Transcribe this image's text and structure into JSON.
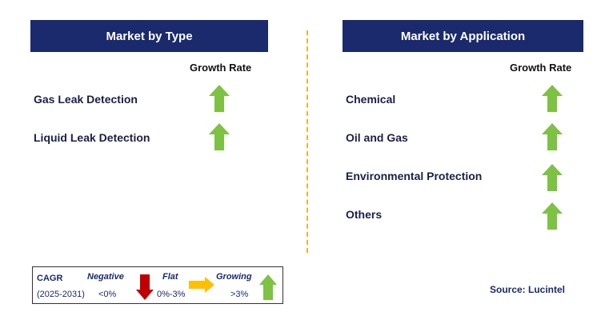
{
  "left_panel": {
    "title": "Market by Type",
    "growth_header": "Growth Rate",
    "items": [
      {
        "label": "Gas Leak Detection",
        "trend": "growing"
      },
      {
        "label": "Liquid Leak Detection",
        "trend": "growing"
      }
    ]
  },
  "right_panel": {
    "title": "Market by Application",
    "growth_header": "Growth Rate",
    "items": [
      {
        "label": "Chemical",
        "trend": "growing"
      },
      {
        "label": "Oil and Gas",
        "trend": "growing"
      },
      {
        "label": "Environmental Protection",
        "trend": "growing"
      },
      {
        "label": "Others",
        "trend": "growing"
      }
    ]
  },
  "legend": {
    "cagr_label": "CAGR",
    "period": "(2025-2031)",
    "negative_label": "Negative",
    "negative_range": "<0%",
    "flat_label": "Flat",
    "flat_range": "0%-3%",
    "growing_label": "Growing",
    "growing_range": ">3%"
  },
  "source": "Source: Lucintel",
  "colors": {
    "header_bg": "#1a2a6c",
    "growing_arrow": "#7dc242",
    "negative_arrow": "#c00000",
    "flat_arrow": "#ffc000",
    "divider": "#f0b429"
  }
}
